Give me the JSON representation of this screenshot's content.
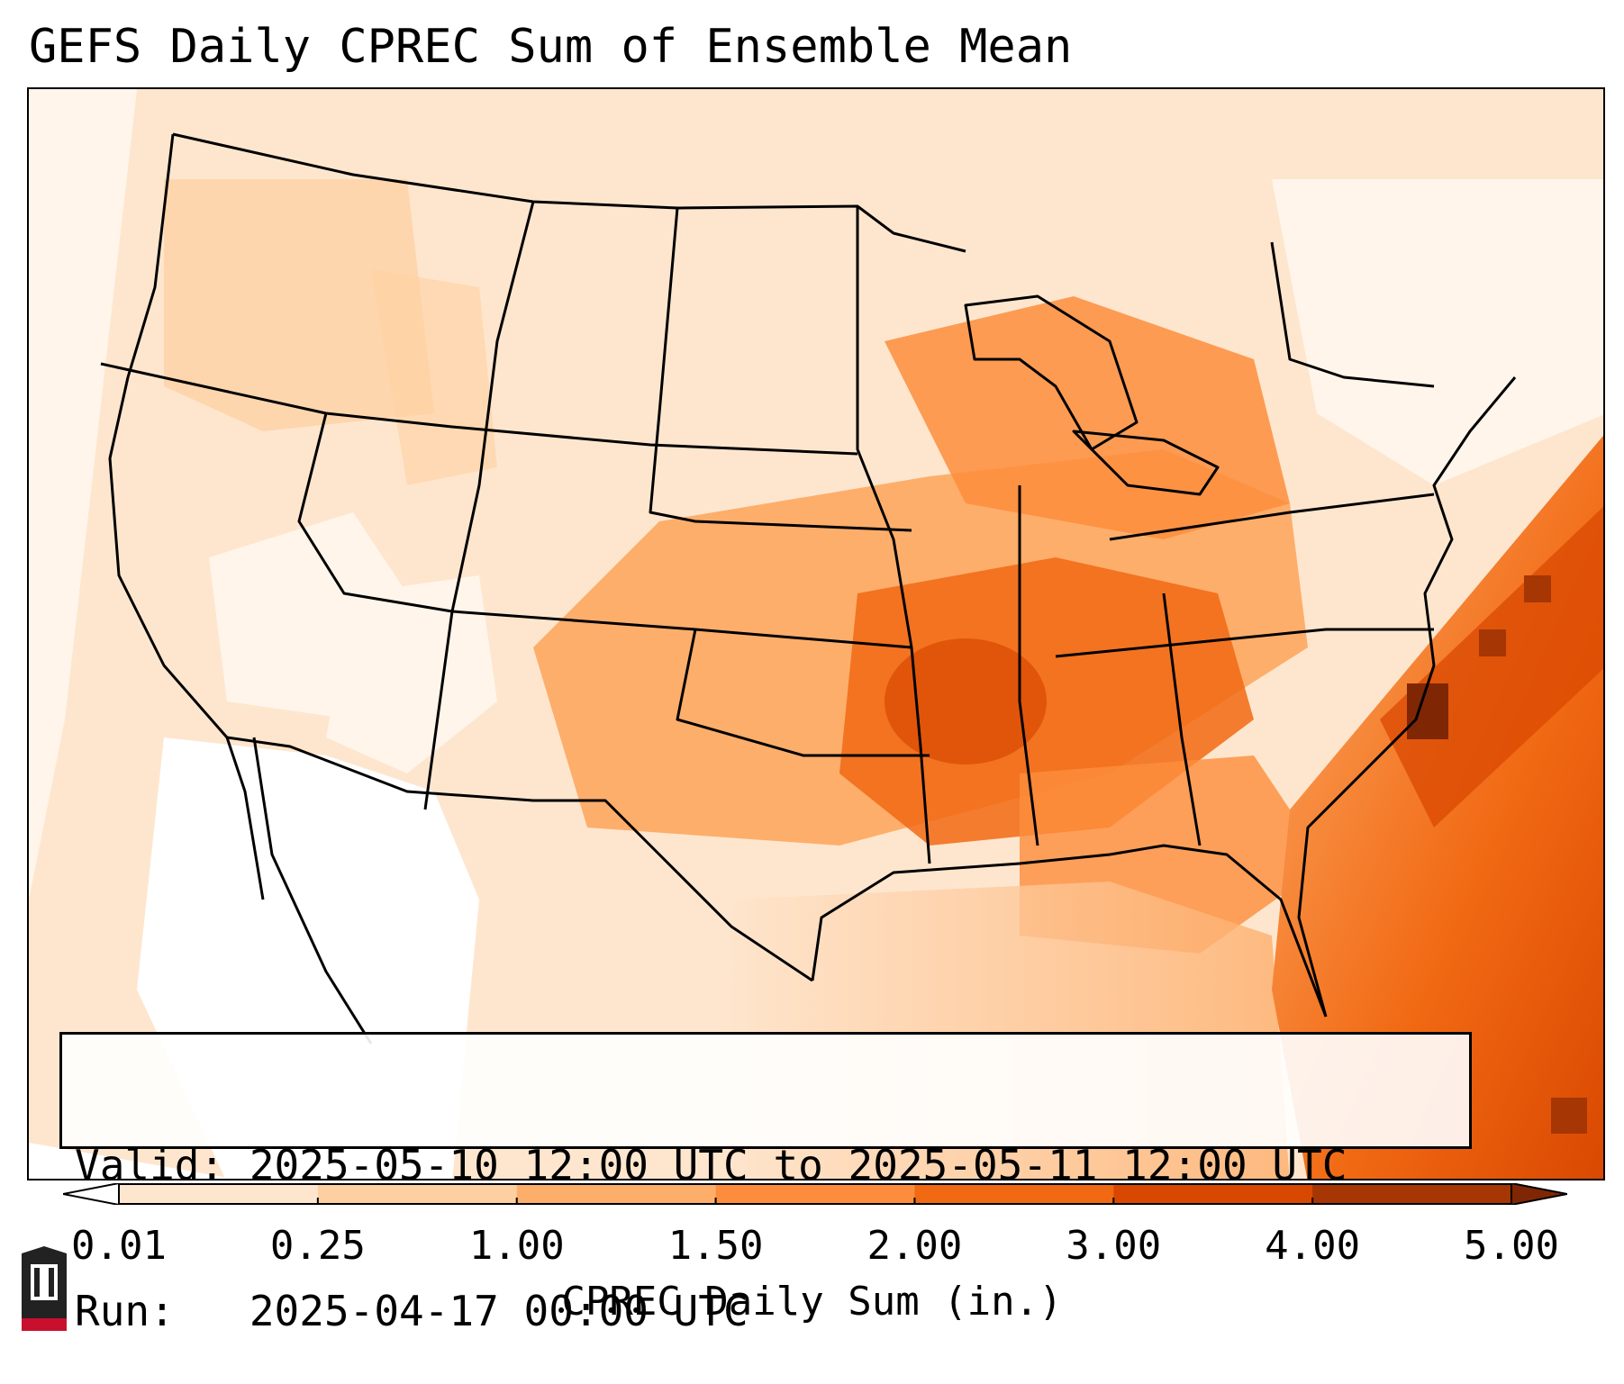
{
  "title": "GEFS Daily CPREC Sum of Ensemble Mean",
  "info": {
    "valid_line": "Valid: 2025-05-10 12:00 UTC to 2025-05-11 12:00 UTC",
    "run_line": "Run:   2025-04-17 00:00 UTC"
  },
  "colorbar": {
    "label": "CPREC Daily Sum (in.)",
    "ticks": [
      "0.01",
      "0.25",
      "1.00",
      "1.50",
      "2.00",
      "3.00",
      "4.00",
      "5.00"
    ],
    "colors": [
      "#fff5eb",
      "#fee6ce",
      "#fdd0a2",
      "#fdae6b",
      "#fd8d3c",
      "#f16913",
      "#d94801",
      "#a63603",
      "#7f2704"
    ],
    "under_color": "#ffffff",
    "over_color": "#7f2704"
  },
  "map": {
    "projection": "Lambert Conformal (CONUS)",
    "field": "CPREC daily sum, ensemble mean"
  },
  "logo": {
    "text": "NIU"
  }
}
